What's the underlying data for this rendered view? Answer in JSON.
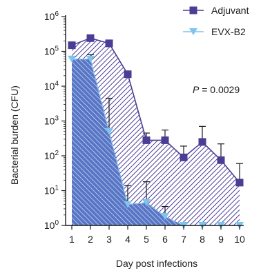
{
  "chart_data": {
    "type": "area",
    "title": "",
    "xlabel": "Day post infections",
    "ylabel": "Bacterial burden (CFU)",
    "x": [
      1,
      2,
      3,
      4,
      5,
      6,
      7,
      8,
      9,
      10
    ],
    "x_tick_labels": [
      "1",
      "2",
      "3",
      "4",
      "5",
      "6",
      "7",
      "8",
      "9",
      "10"
    ],
    "ylim": [
      1,
      1000000
    ],
    "yscale": "log",
    "y_tick_labels": [
      {
        "base": "10",
        "exp": "0",
        "value": 1
      },
      {
        "base": "10",
        "exp": "1",
        "value": 10
      },
      {
        "base": "10",
        "exp": "2",
        "value": 100
      },
      {
        "base": "10",
        "exp": "3",
        "value": 1000
      },
      {
        "base": "10",
        "exp": "4",
        "value": 10000
      },
      {
        "base": "10",
        "exp": "5",
        "value": 100000
      },
      {
        "base": "10",
        "exp": "6",
        "value": 1000000
      }
    ],
    "series": [
      {
        "name": "Adjuvant",
        "marker": "square",
        "color": "#4b3c96",
        "values": [
          150000,
          240000,
          170000,
          22000,
          280,
          280,
          90,
          250,
          75,
          17
        ],
        "error_upper": [
          null,
          null,
          null,
          null,
          450,
          550,
          190,
          700,
          220,
          60
        ]
      },
      {
        "name": "EVX-B2",
        "marker": "triangle-down",
        "color": "#7fc4ee",
        "values": [
          60000,
          60000,
          500,
          4,
          4.5,
          1.8,
          1,
          1,
          1,
          1
        ],
        "error_upper": [
          null,
          80000,
          4500,
          14,
          18,
          3.5,
          null,
          null,
          null,
          null
        ]
      }
    ],
    "legend_position": "top-right",
    "grid": false,
    "annotation": {
      "italic_part": "P",
      "rest": " = 0.0029"
    }
  }
}
